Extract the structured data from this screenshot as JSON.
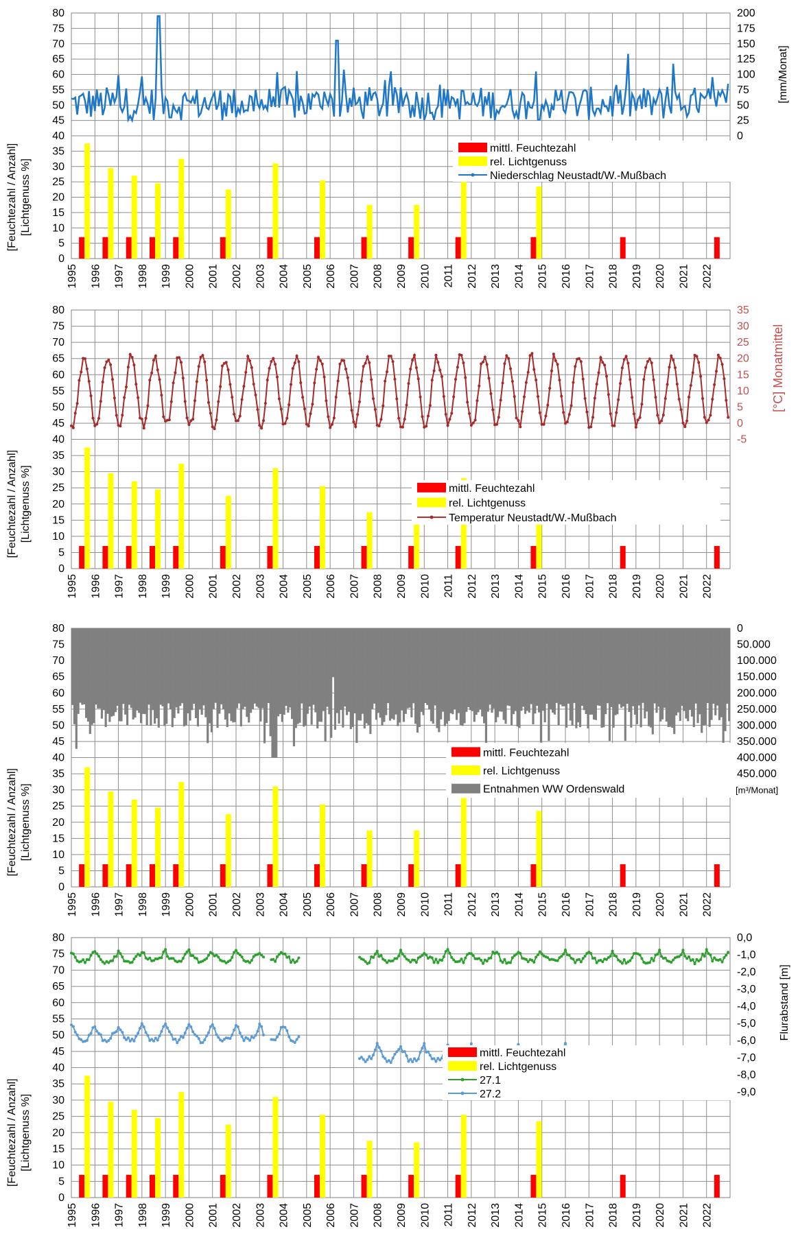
{
  "shared": {
    "years": [
      "1995",
      "1996",
      "1997",
      "1998",
      "1999",
      "2000",
      "2001",
      "2002",
      "2003",
      "2004",
      "2005",
      "2006",
      "2007",
      "2008",
      "2009",
      "2010",
      "2011",
      "2012",
      "2013",
      "2014",
      "2015",
      "2016",
      "2017",
      "2018",
      "2019",
      "2020",
      "2021",
      "2022"
    ],
    "left_ticks": [
      "0",
      "5",
      "10",
      "15",
      "20",
      "25",
      "30",
      "35",
      "40",
      "45",
      "50",
      "55",
      "60",
      "65",
      "70",
      "75",
      "80"
    ],
    "left_axis_label_line1": "[Feuchtezahl / Anzahl]",
    "left_axis_label_line2": "[Lichtgenuss %]",
    "legend_feuchte": "mittl. Feuchtezahl",
    "legend_licht": "rel. Lichtgenuss",
    "colors": {
      "feuchte": "#ff0000",
      "licht": "#ffff00"
    }
  },
  "chart_data": [
    {
      "type": "bar+line",
      "secondary_series_name": "Niederschlag Neustadt/W.-Mußbach",
      "secondary_axis_label": "[mm/Monat]",
      "secondary_ticks": [
        "0",
        "25",
        "50",
        "75",
        "100",
        "125",
        "150",
        "175",
        "200"
      ],
      "secondary_range": [
        0,
        200
      ],
      "secondary_color": "#1f77c8",
      "ylim": [
        0,
        80
      ],
      "bars": {
        "positions": [
          1995.5,
          1996.5,
          1997.5,
          1998.5,
          1999.5,
          2001.5,
          2003.5,
          2005.5,
          2007.5,
          2009.5,
          2011.5,
          2014.7,
          2018.5,
          2022.5
        ],
        "feuchte": [
          7,
          7,
          7,
          7,
          7,
          7,
          7,
          7,
          7,
          7,
          7,
          7,
          7,
          7
        ],
        "licht": [
          37.5,
          29.5,
          27,
          24.5,
          32.5,
          22.5,
          31,
          25.5,
          17.5,
          17.5,
          27.5,
          23.5,
          null,
          null
        ]
      }
    },
    {
      "type": "bar+line",
      "secondary_series_name": "Temperatur Neustadt/W.-Mußbach",
      "secondary_axis_label": "[°C] Monatmittel",
      "secondary_ticks": [
        "-5",
        "0",
        "5",
        "10",
        "15",
        "20",
        "25",
        "30",
        "35"
      ],
      "secondary_range": [
        -5,
        35
      ],
      "secondary_color": "#a52a2a",
      "ylim": [
        0,
        80
      ],
      "bars": {
        "positions": [
          1995.5,
          1996.5,
          1997.5,
          1998.5,
          1999.5,
          2001.5,
          2003.5,
          2005.5,
          2007.5,
          2009.5,
          2011.5,
          2014.7,
          2018.5,
          2022.5
        ],
        "feuchte": [
          7,
          7,
          7,
          7,
          7,
          7,
          7,
          7,
          7,
          7,
          7,
          7,
          7,
          7
        ],
        "licht": [
          37.5,
          29.5,
          27,
          24.5,
          32.5,
          22.5,
          31,
          25.5,
          17.5,
          17,
          28,
          23.5,
          null,
          null
        ]
      }
    },
    {
      "type": "bar+column",
      "secondary_series_name": "Entnahmen WW Ordenswald",
      "secondary_axis_label": "[m³/Monat]",
      "secondary_ticks": [
        "0",
        "50.000",
        "100.000",
        "150.000",
        "200.000",
        "250.000",
        "300.000",
        "350.000",
        "400.000",
        "450.000"
      ],
      "secondary_range": [
        0,
        450000
      ],
      "secondary_reversed": true,
      "secondary_color": "#808080",
      "ylim": [
        0,
        80
      ],
      "bars": {
        "positions": [
          1995.5,
          1996.5,
          1997.5,
          1998.5,
          1999.5,
          2001.5,
          2003.5,
          2005.5,
          2007.5,
          2009.5,
          2011.5,
          2014.7,
          2018.5,
          2022.5
        ],
        "feuchte": [
          7,
          7,
          7,
          7,
          7,
          7,
          7,
          7,
          7,
          7,
          7,
          7,
          7,
          7
        ],
        "licht": [
          37,
          29.5,
          27,
          24.5,
          32.5,
          22.5,
          31,
          25.5,
          17.5,
          17.5,
          27.5,
          23.5,
          null,
          null
        ]
      }
    },
    {
      "type": "bar+line",
      "secondary_axis_label": "Flurabstand [m]",
      "secondary_ticks": [
        "-9,0",
        "-8,0",
        "-7,0",
        "-6,0",
        "-5,0",
        "-4,0",
        "-3,0",
        "-2,0",
        "-1,0",
        "0,0"
      ],
      "secondary_range": [
        -9,
        0
      ],
      "series": [
        {
          "name": "27.1",
          "color": "#2ca02c"
        },
        {
          "name": "27.2",
          "color": "#5b9bd5"
        }
      ],
      "ylim": [
        0,
        80
      ],
      "bars": {
        "positions": [
          1995.5,
          1996.5,
          1997.5,
          1998.5,
          1999.5,
          2001.5,
          2003.5,
          2005.5,
          2007.5,
          2009.5,
          2011.5,
          2014.7,
          2018.5,
          2022.5
        ],
        "feuchte": [
          7,
          7,
          7,
          7,
          7,
          7,
          7,
          7,
          7,
          7,
          7,
          7,
          7,
          7
        ],
        "licht": [
          37.5,
          29.5,
          27,
          24.5,
          32.5,
          22.5,
          31,
          25.5,
          17.5,
          17,
          25.5,
          23.5,
          null,
          null
        ]
      }
    }
  ]
}
